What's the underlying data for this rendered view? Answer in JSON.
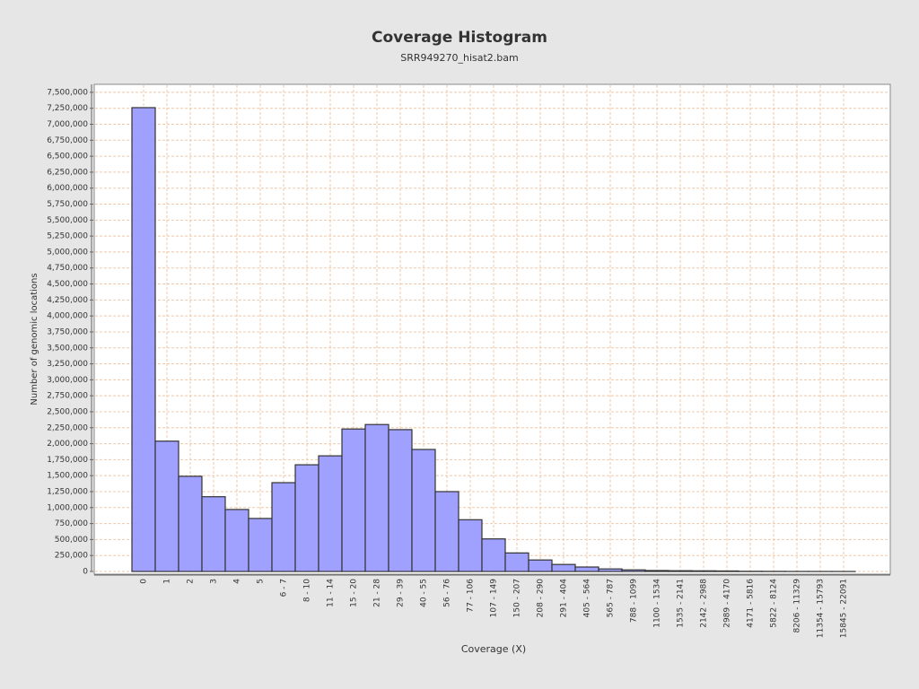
{
  "chart_data": {
    "type": "bar",
    "title": "Coverage Histogram",
    "subtitle": "SRR949270_hisat2.bam",
    "x_label": "Coverage (X)",
    "y_label": "Number of genomic locations",
    "categories": [
      "0",
      "1",
      "2",
      "3",
      "4",
      "5",
      "6 - 7",
      "8 - 10",
      "11 - 14",
      "15 - 20",
      "21 - 28",
      "29 - 39",
      "40 - 55",
      "56 - 76",
      "77 - 106",
      "107 - 149",
      "150 - 207",
      "208 - 290",
      "291 - 404",
      "405 - 564",
      "565 - 787",
      "788 - 1099",
      "1100 - 1534",
      "1535 - 2141",
      "2142 - 2988",
      "2989 - 4170",
      "4171 - 5816",
      "5822 - 8124",
      "8206 - 11329",
      "11354 - 15793",
      "15845 - 22091"
    ],
    "values": [
      7260000,
      2040000,
      1490000,
      1170000,
      970000,
      830000,
      1390000,
      1670000,
      1810000,
      2230000,
      2300000,
      2220000,
      1910000,
      1250000,
      810000,
      510000,
      290000,
      180000,
      110000,
      70000,
      40000,
      25000,
      15000,
      12000,
      10000,
      8000,
      3000,
      2000,
      1000,
      500,
      300
    ],
    "color": "#a0a0ff",
    "grid": true,
    "ylim": [
      0,
      7625000
    ],
    "yticks": [
      {
        "value": 0,
        "label": "0"
      },
      {
        "value": 250000,
        "label": "250,000"
      },
      {
        "value": 500000,
        "label": "500,000"
      },
      {
        "value": 750000,
        "label": "750,000"
      },
      {
        "value": 1000000,
        "label": "1,000,000"
      },
      {
        "value": 1250000,
        "label": "1,250,000"
      },
      {
        "value": 1500000,
        "label": "1,500,000"
      },
      {
        "value": 1750000,
        "label": "1,750,000"
      },
      {
        "value": 2000000,
        "label": "2,000,000"
      },
      {
        "value": 2250000,
        "label": "2,250,000"
      },
      {
        "value": 2500000,
        "label": "2,500,000"
      },
      {
        "value": 2750000,
        "label": "2,750,000"
      },
      {
        "value": 3000000,
        "label": "3,000,000"
      },
      {
        "value": 3250000,
        "label": "3,250,000"
      },
      {
        "value": 3500000,
        "label": "3,500,000"
      },
      {
        "value": 3750000,
        "label": "3,750,000"
      },
      {
        "value": 4000000,
        "label": "4,000,000"
      },
      {
        "value": 4250000,
        "label": "4,250,000"
      },
      {
        "value": 4500000,
        "label": "4,500,000"
      },
      {
        "value": 4750000,
        "label": "4,750,000"
      },
      {
        "value": 5000000,
        "label": "5,000,000"
      },
      {
        "value": 5250000,
        "label": "5,250,000"
      },
      {
        "value": 5500000,
        "label": "5,500,000"
      },
      {
        "value": 5750000,
        "label": "5,750,000"
      },
      {
        "value": 6000000,
        "label": "6,000,000"
      },
      {
        "value": 6250000,
        "label": "6,250,000"
      },
      {
        "value": 6500000,
        "label": "6,500,000"
      },
      {
        "value": 6750000,
        "label": "6,750,000"
      },
      {
        "value": 7000000,
        "label": "7,000,000"
      },
      {
        "value": 7250000,
        "label": "7,250,000"
      },
      {
        "value": 7500000,
        "label": "7,500,000"
      }
    ]
  }
}
